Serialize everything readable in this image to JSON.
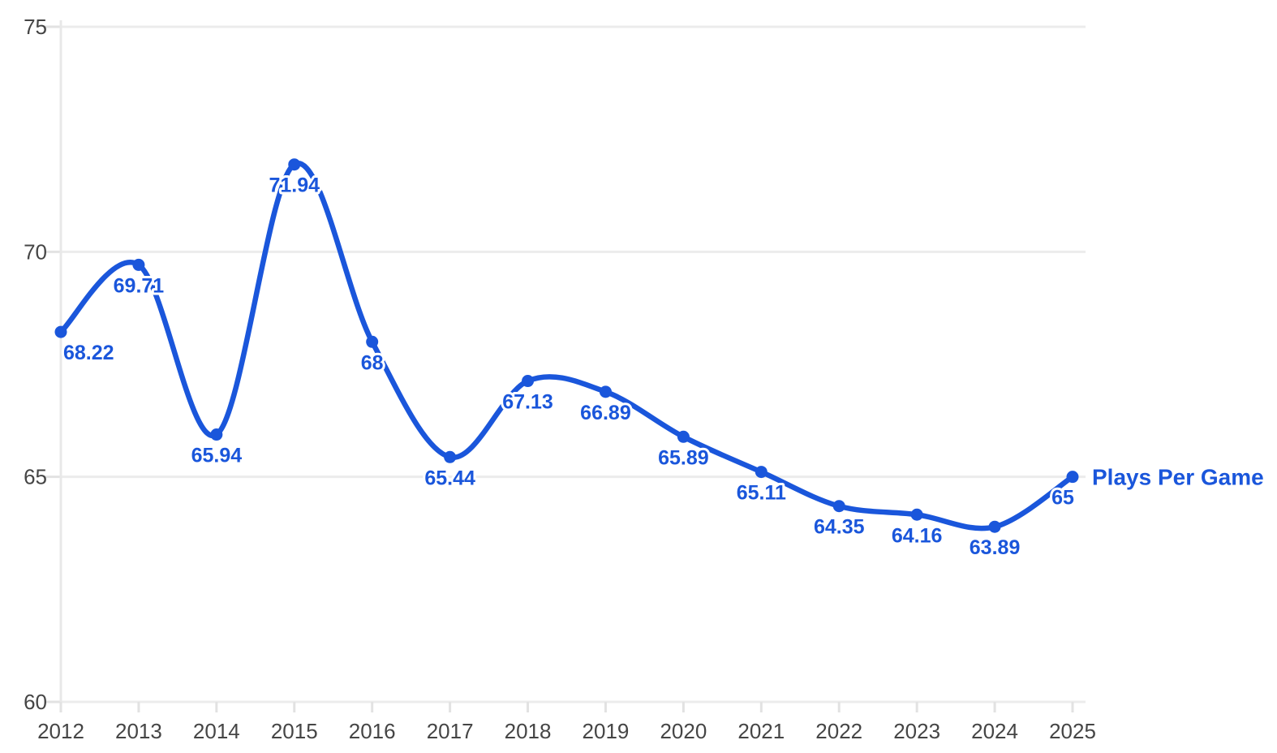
{
  "chart_data": {
    "type": "line",
    "title": "",
    "xlabel": "",
    "ylabel": "",
    "x_tick_labels": [
      "2012",
      "2013",
      "2014",
      "2015",
      "2016",
      "2017",
      "2018",
      "2019",
      "2020",
      "2021",
      "2022",
      "2023",
      "2024",
      "2025"
    ],
    "y_tick_labels": [
      "60",
      "65",
      "70",
      "75"
    ],
    "y_ticks": [
      60,
      65,
      70,
      75
    ],
    "ylim": [
      60,
      75
    ],
    "grid": "horizontal",
    "legend_position": "end-of-line",
    "series": [
      {
        "name": "Plays Per Game",
        "x": [
          2012,
          2013,
          2014,
          2015,
          2016,
          2017,
          2018,
          2019,
          2020,
          2021,
          2022,
          2023,
          2024,
          2025
        ],
        "values": [
          68.22,
          69.71,
          65.94,
          71.94,
          68,
          65.44,
          67.13,
          66.89,
          65.89,
          65.11,
          64.35,
          64.16,
          63.89,
          65
        ],
        "point_labels": [
          "68.22",
          "69.71",
          "65.94",
          "71.94",
          "68",
          "65.44",
          "67.13",
          "66.89",
          "65.89",
          "65.11",
          "64.35",
          "64.16",
          "63.89",
          "65"
        ]
      }
    ],
    "colors": {
      "line": "#1a56db",
      "point": "#1a56db",
      "value_label": "#1a56db",
      "series_label": "#1a56db",
      "axis_text": "#454545",
      "gridline": "#ececec",
      "tick": "#e2e2e2",
      "axis_line": "#e8e8e8"
    }
  }
}
